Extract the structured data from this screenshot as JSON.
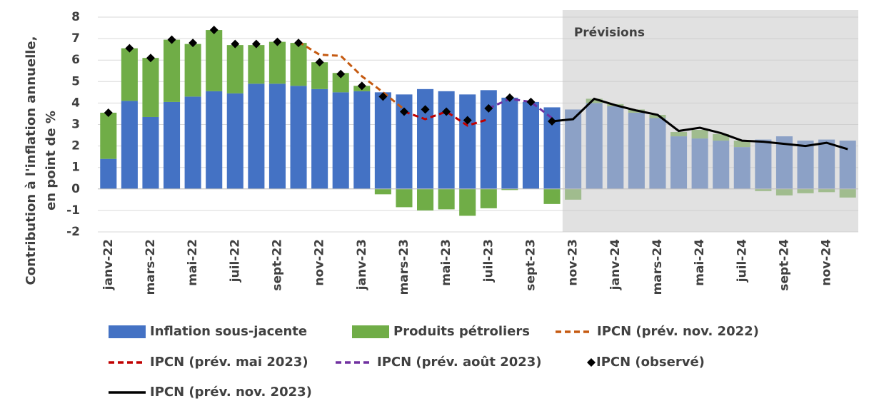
{
  "chart_data": {
    "type": "bar",
    "y_label": [
      "Contribution à l'inflation annuelle,",
      "en point de %"
    ],
    "annotation": "Prévisions",
    "shaded_from": "nov-23",
    "categories": [
      "janv-22",
      null,
      "mars-22",
      null,
      "mai-22",
      null,
      "juil-22",
      null,
      "sept-22",
      null,
      "nov-22",
      null,
      "janv-23",
      null,
      "mars-23",
      null,
      "mai-23",
      null,
      "juil-23",
      null,
      "sept-23",
      null,
      "nov-23",
      null,
      "janv-24",
      null,
      "mars-24",
      null,
      "mai-24",
      null,
      "juil-24",
      null,
      "sept-24",
      null,
      "nov-24",
      null
    ],
    "ylim": [
      -2,
      8
    ],
    "yticks": [
      -2,
      -1,
      0,
      1,
      2,
      3,
      4,
      5,
      6,
      7,
      8
    ],
    "grid": true,
    "series": [
      {
        "name": "Inflation sous-jacente",
        "type": "bar",
        "color": "#4472c4",
        "values": [
          1.4,
          4.1,
          3.35,
          4.05,
          4.3,
          4.55,
          4.45,
          4.9,
          4.9,
          4.8,
          4.65,
          4.5,
          4.55,
          4.5,
          4.4,
          4.65,
          4.55,
          4.4,
          4.6,
          4.25,
          4.05,
          3.8,
          3.7,
          4.0,
          3.85,
          3.55,
          3.3,
          2.45,
          2.35,
          2.25,
          1.95,
          2.3,
          2.45,
          2.25,
          2.3,
          2.25
        ]
      },
      {
        "name": "Produits pétroliers",
        "type": "bar",
        "color": "#70ad47",
        "values": [
          2.15,
          2.45,
          2.75,
          2.9,
          2.45,
          2.85,
          2.25,
          1.8,
          1.95,
          2.0,
          1.25,
          0.9,
          0.25,
          -0.25,
          -0.85,
          -1.0,
          -0.95,
          -1.25,
          -0.9,
          -0.05,
          0.0,
          -0.7,
          -0.5,
          0.2,
          0.1,
          0.15,
          0.15,
          0.2,
          0.4,
          0.3,
          0.3,
          -0.1,
          -0.3,
          -0.2,
          -0.15,
          -0.4
        ]
      },
      {
        "name": "IPCN (prév. nov. 2022)",
        "type": "line",
        "dashed": true,
        "color": "#c55a11",
        "values": [
          null,
          null,
          null,
          null,
          null,
          null,
          null,
          null,
          null,
          6.85,
          6.25,
          6.2,
          5.25,
          4.5,
          3.7,
          null,
          null,
          null,
          null,
          null,
          null,
          null,
          null,
          null,
          null,
          null,
          null,
          null,
          null,
          null,
          null,
          null,
          null,
          null,
          null,
          null
        ]
      },
      {
        "name": "IPCN (prév. mai 2023)",
        "type": "line",
        "dashed": true,
        "color": "#c00000",
        "values": [
          null,
          null,
          null,
          null,
          null,
          null,
          null,
          null,
          null,
          null,
          null,
          null,
          null,
          null,
          3.6,
          3.25,
          3.6,
          2.95,
          3.25,
          null,
          null,
          null,
          null,
          null,
          null,
          null,
          null,
          null,
          null,
          null,
          null,
          null,
          null,
          null,
          null,
          null
        ]
      },
      {
        "name": "IPCN (prév. août 2023)",
        "type": "line",
        "dashed": true,
        "color": "#7030a0",
        "values": [
          null,
          null,
          null,
          null,
          null,
          null,
          null,
          null,
          null,
          null,
          null,
          null,
          null,
          null,
          null,
          null,
          null,
          null,
          3.75,
          4.2,
          4.05,
          3.3,
          null,
          null,
          null,
          null,
          null,
          null,
          null,
          null,
          null,
          null,
          null,
          null,
          null,
          null
        ]
      },
      {
        "name": "IPCN (observé)",
        "type": "scatter",
        "color": "#000000",
        "values": [
          3.55,
          6.55,
          6.1,
          6.95,
          6.8,
          7.4,
          6.75,
          6.75,
          6.85,
          6.8,
          5.9,
          5.35,
          4.8,
          4.3,
          3.6,
          3.7,
          3.6,
          3.2,
          3.75,
          4.25,
          4.05,
          3.15,
          null,
          null,
          null,
          null,
          null,
          null,
          null,
          null,
          null,
          null,
          null,
          null,
          null,
          null
        ]
      },
      {
        "name": "IPCN (prév. nov. 2023)",
        "type": "line",
        "color": "#000000",
        "values": [
          null,
          null,
          null,
          null,
          null,
          null,
          null,
          null,
          null,
          null,
          null,
          null,
          null,
          null,
          null,
          null,
          null,
          null,
          null,
          null,
          null,
          3.15,
          3.25,
          4.2,
          3.9,
          3.65,
          3.45,
          2.7,
          2.85,
          2.6,
          2.25,
          2.2,
          2.1,
          2.0,
          2.15,
          1.85
        ]
      }
    ]
  }
}
